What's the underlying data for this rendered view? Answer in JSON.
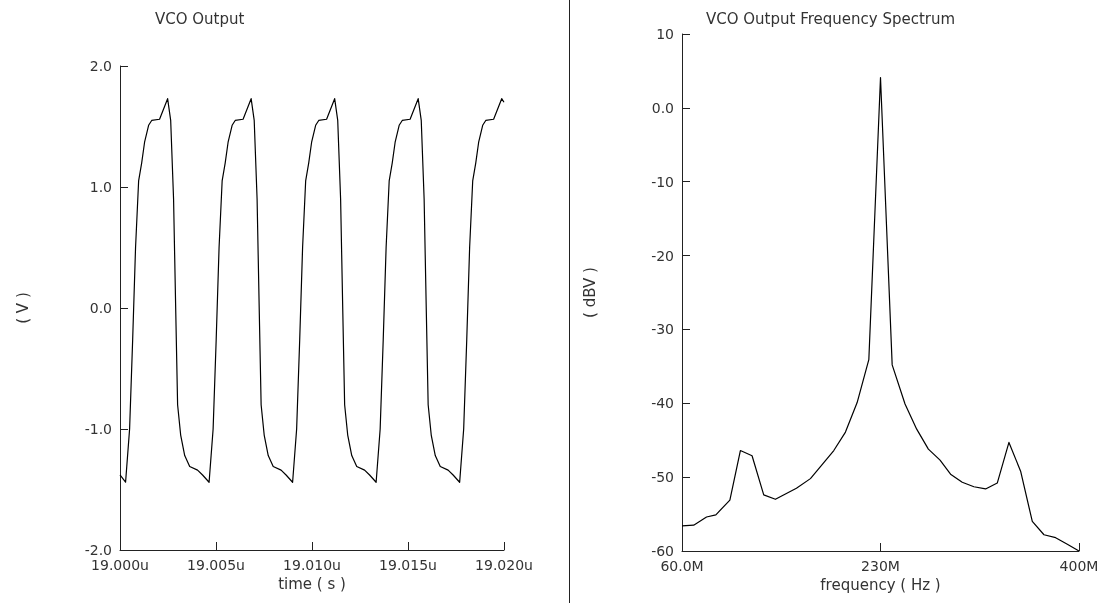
{
  "chart_data": [
    {
      "type": "line",
      "title": "VCO Output",
      "xlabel": "time ( s )",
      "ylabel": "( V )",
      "color": "#000000",
      "marker": "none",
      "line_style": "solid",
      "x": [
        19.0,
        19.00029,
        19.0005,
        19.00066,
        19.00081,
        19.00097,
        19.00113,
        19.00128,
        19.00149,
        19.00165,
        19.00206,
        19.00248,
        19.00264,
        19.00279,
        19.0029,
        19.003,
        19.00316,
        19.00337,
        19.00363,
        19.00404,
        19.0043,
        19.00464,
        19.00485,
        19.00501,
        19.00516,
        19.00532,
        19.00548,
        19.00563,
        19.00584,
        19.006,
        19.00641,
        19.00683,
        19.00699,
        19.00714,
        19.00725,
        19.00735,
        19.00751,
        19.00772,
        19.00798,
        19.00839,
        19.00865,
        19.00899,
        19.0092,
        19.00936,
        19.00951,
        19.00967,
        19.00983,
        19.00998,
        19.01019,
        19.01035,
        19.01076,
        19.01118,
        19.01134,
        19.01149,
        19.0116,
        19.0117,
        19.01186,
        19.01207,
        19.01233,
        19.01274,
        19.013,
        19.01334,
        19.01355,
        19.01371,
        19.01386,
        19.01402,
        19.01418,
        19.01433,
        19.01454,
        19.0147,
        19.01511,
        19.01553,
        19.01569,
        19.01584,
        19.01595,
        19.01605,
        19.01621,
        19.01642,
        19.01668,
        19.01709,
        19.01735,
        19.01769,
        19.0179,
        19.01806,
        19.01821,
        19.01837,
        19.01853,
        19.01868,
        19.01889,
        19.01905,
        19.01946,
        19.01988,
        19.02
      ],
      "values": [
        -1.38,
        -1.44,
        -1.0,
        -0.26,
        0.5,
        1.05,
        1.2,
        1.37,
        1.51,
        1.55,
        1.56,
        1.73,
        1.55,
        0.9,
        0.0,
        -0.8,
        -1.05,
        -1.22,
        -1.31,
        -1.34,
        -1.38,
        -1.44,
        -1.0,
        -0.26,
        0.5,
        1.05,
        1.2,
        1.37,
        1.51,
        1.55,
        1.56,
        1.73,
        1.55,
        0.9,
        0.0,
        -0.8,
        -1.05,
        -1.22,
        -1.31,
        -1.34,
        -1.38,
        -1.44,
        -1.0,
        -0.26,
        0.5,
        1.05,
        1.2,
        1.37,
        1.51,
        1.55,
        1.56,
        1.73,
        1.55,
        0.9,
        0.0,
        -0.8,
        -1.05,
        -1.22,
        -1.31,
        -1.34,
        -1.38,
        -1.44,
        -1.0,
        -0.26,
        0.5,
        1.05,
        1.2,
        1.37,
        1.51,
        1.55,
        1.56,
        1.73,
        1.55,
        0.9,
        0.0,
        -0.8,
        -1.05,
        -1.22,
        -1.31,
        -1.34,
        -1.38,
        -1.44,
        -1.0,
        -0.26,
        0.5,
        1.05,
        1.2,
        1.37,
        1.51,
        1.55,
        1.56,
        1.73,
        1.7
      ],
      "xlim": [
        19.0,
        19.02
      ],
      "xticks": [
        {
          "value": 19.0,
          "label": "19.000u"
        },
        {
          "value": 19.005,
          "label": "19.005u"
        },
        {
          "value": 19.01,
          "label": "19.010u"
        },
        {
          "value": 19.015,
          "label": "19.015u"
        },
        {
          "value": 19.02,
          "label": "19.020u"
        }
      ],
      "ylim": [
        -2,
        2
      ],
      "yticks": [
        {
          "value": -2,
          "label": "-2.0"
        },
        {
          "value": -1,
          "label": "-1.0"
        },
        {
          "value": 0,
          "label": "0.0"
        },
        {
          "value": 1,
          "label": "1.0"
        },
        {
          "value": 2,
          "label": "2.0"
        }
      ]
    },
    {
      "type": "line",
      "title": "VCO Output Frequency Spectrum",
      "xlabel": "frequency ( Hz )",
      "ylabel": "( dBV )",
      "color": "#000000",
      "marker": "none",
      "line_style": "solid",
      "x": [
        60,
        70,
        81,
        89,
        101,
        110,
        120,
        130,
        140,
        158,
        170,
        190,
        200,
        210,
        220,
        230,
        240,
        251,
        261,
        271,
        281,
        290,
        300,
        310,
        320,
        330,
        340,
        350,
        360,
        370,
        380,
        390,
        400
      ],
      "values": [
        -56.6,
        -56.5,
        -55.4,
        -55.1,
        -53.1,
        -46.4,
        -47.1,
        -52.4,
        -53.0,
        -51.5,
        -50.2,
        -46.4,
        -43.9,
        -39.9,
        -34.1,
        4.1,
        -34.8,
        -40.1,
        -43.5,
        -46.2,
        -47.7,
        -49.6,
        -50.7,
        -51.3,
        -51.6,
        -50.8,
        -45.3,
        -49.2,
        -56.0,
        -57.8,
        -58.2,
        -59.1,
        -60.0
      ],
      "xlim": [
        60,
        400
      ],
      "xticks": [
        {
          "value": 60,
          "label": "60.0M"
        },
        {
          "value": 230,
          "label": "230M"
        },
        {
          "value": 400,
          "label": "400M"
        }
      ],
      "ylim": [
        -60,
        10
      ],
      "yticks": [
        -60,
        -50,
        -40,
        -30,
        -20,
        -10,
        {
          "value": 0,
          "label": "0.0"
        },
        10
      ]
    }
  ]
}
